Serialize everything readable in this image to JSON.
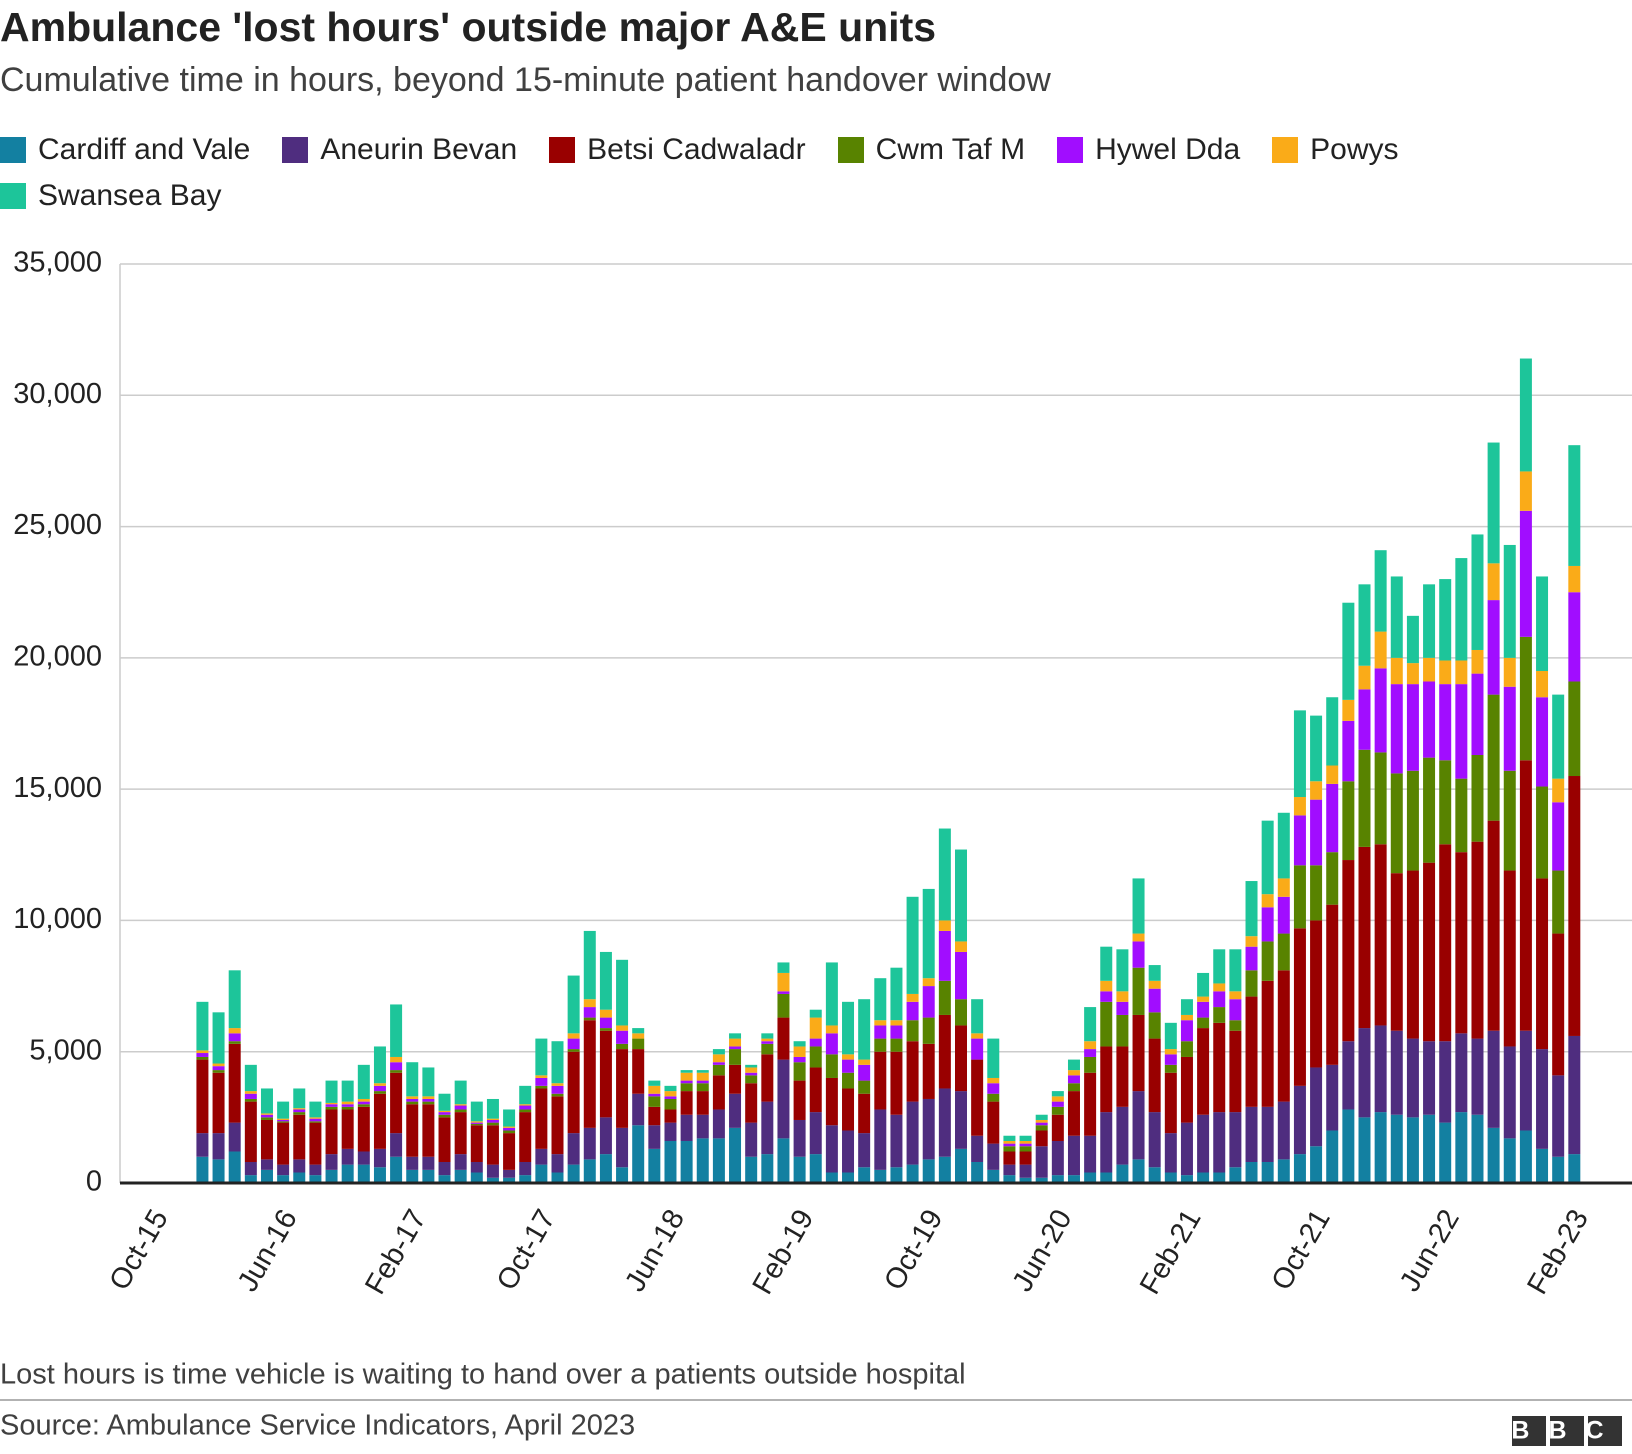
{
  "chart_data": {
    "type": "stacked_bar",
    "title": "Ambulance 'lost hours' outside major A&E units",
    "subtitle": "Cumulative time in hours, beyond 15-minute patient handover window",
    "footnote": "Lost hours is time vehicle is waiting to hand over a patients outside hospital",
    "source": "Source: Ambulance Service Indicators, April 2023",
    "logo": "BBC",
    "categories": [
      "Oct-15",
      null,
      null,
      null,
      null,
      null,
      null,
      null,
      "Jun-16",
      null,
      null,
      null,
      null,
      null,
      null,
      null,
      "Feb-17",
      null,
      null,
      null,
      null,
      null,
      null,
      null,
      "Oct-17",
      null,
      null,
      null,
      null,
      null,
      null,
      null,
      "Jun-18",
      null,
      null,
      null,
      null,
      null,
      null,
      null,
      "Feb-19",
      null,
      null,
      null,
      null,
      null,
      null,
      null,
      "Oct-19",
      null,
      null,
      null,
      null,
      null,
      null,
      null,
      "Jun-20",
      null,
      null,
      null,
      null,
      null,
      null,
      null,
      "Feb-21",
      null,
      null,
      null,
      null,
      null,
      null,
      null,
      "Oct-21",
      null,
      null,
      null,
      null,
      null,
      null,
      null,
      "Jun-22",
      null,
      null,
      null,
      null,
      null,
      null,
      null,
      "Feb-23"
    ],
    "ylim": [
      0,
      35000
    ],
    "yticks": [
      0,
      {
        "value": 5000,
        "label": "5,000"
      },
      {
        "value": 10000,
        "label": "10,000"
      },
      {
        "value": 15000,
        "label": "15,000"
      },
      {
        "value": 20000,
        "label": "20,000"
      },
      {
        "value": 25000,
        "label": "25,000"
      },
      {
        "value": 30000,
        "label": "30,000"
      },
      {
        "value": 35000,
        "label": "35,000"
      }
    ],
    "grid": true,
    "series": [
      {
        "name": "Cardiff and Vale",
        "color": "#1380a1",
        "values": [
          null,
          null,
          null,
          1000,
          900,
          1200,
          300,
          500,
          300,
          400,
          300,
          500,
          700,
          700,
          600,
          1000,
          500,
          500,
          300,
          500,
          400,
          200,
          200,
          300,
          700,
          400,
          700,
          900,
          1100,
          600,
          2200,
          1300,
          1600,
          1600,
          1700,
          1700,
          2100,
          1000,
          1100,
          1700,
          1000,
          1100,
          400,
          400,
          600,
          500,
          600,
          700,
          900,
          1000,
          1300,
          800,
          500,
          300,
          200,
          200,
          300,
          300,
          400,
          400,
          700,
          900,
          600,
          400,
          300,
          400,
          400,
          600,
          800,
          800,
          900,
          1100,
          1400,
          2000,
          2800,
          2500,
          2700,
          2600,
          2500,
          2600,
          2300,
          2700,
          2600,
          2100,
          1700,
          2000,
          1300,
          1000,
          1100
        ]
      },
      {
        "name": "Aneurin Bevan",
        "color": "#4f2d7f",
        "values": [
          null,
          null,
          null,
          900,
          1000,
          1100,
          500,
          400,
          400,
          500,
          400,
          600,
          600,
          500,
          700,
          900,
          500,
          500,
          500,
          600,
          400,
          500,
          300,
          500,
          600,
          700,
          1200,
          1200,
          1400,
          1500,
          1200,
          900,
          700,
          1000,
          900,
          1100,
          1300,
          1300,
          2000,
          3000,
          1400,
          1600,
          1800,
          1600,
          1300,
          2300,
          2000,
          2400,
          2300,
          2600,
          2200,
          1000,
          1000,
          400,
          500,
          1200,
          1300,
          1500,
          1400,
          2300,
          2200,
          2600,
          2100,
          1500,
          2000,
          2200,
          2300,
          2100,
          2100,
          2100,
          2200,
          2600,
          3000,
          2500,
          2600,
          3400,
          3300,
          3200,
          3000,
          2800,
          3100,
          3000,
          2900,
          3700,
          3500,
          3800,
          3800,
          3100,
          4500
        ]
      },
      {
        "name": "Betsi Cadwaladr",
        "color": "#990000",
        "values": [
          null,
          null,
          null,
          2800,
          2300,
          3000,
          2300,
          1500,
          1600,
          1700,
          1600,
          1700,
          1500,
          1700,
          2100,
          2300,
          2000,
          2000,
          1700,
          1600,
          1400,
          1500,
          1400,
          1900,
          2300,
          2200,
          3100,
          4100,
          3300,
          3000,
          1700,
          700,
          500,
          900,
          900,
          1300,
          1100,
          1500,
          1800,
          1600,
          1500,
          1700,
          1800,
          1600,
          1500,
          2200,
          2400,
          2300,
          2100,
          2800,
          2500,
          2900,
          1600,
          500,
          500,
          600,
          1000,
          1700,
          2400,
          2500,
          2300,
          2900,
          2800,
          2300,
          2500,
          3300,
          3400,
          3100,
          4200,
          4800,
          5000,
          6000,
          5600,
          6100,
          6900,
          6900,
          6900,
          6000,
          6400,
          6800,
          7500,
          6900,
          7500,
          8000,
          6700,
          10300,
          6500,
          5400,
          9900
        ]
      },
      {
        "name": "Cwm Taf M",
        "color": "#588300",
        "values": [
          null,
          null,
          null,
          100,
          100,
          100,
          100,
          100,
          50,
          100,
          50,
          100,
          100,
          100,
          100,
          100,
          100,
          100,
          100,
          100,
          50,
          100,
          100,
          100,
          100,
          100,
          100,
          100,
          100,
          200,
          400,
          400,
          400,
          300,
          300,
          400,
          600,
          300,
          400,
          900,
          700,
          800,
          900,
          600,
          500,
          500,
          500,
          800,
          1000,
          1300,
          1000,
          0,
          300,
          200,
          200,
          200,
          300,
          300,
          600,
          1700,
          1200,
          1800,
          1000,
          300,
          600,
          400,
          600,
          400,
          1000,
          1500,
          1400,
          2400,
          2100,
          2000,
          3000,
          3700,
          3500,
          3800,
          3800,
          4000,
          3200,
          2800,
          3300,
          4800,
          3800,
          4700,
          3500,
          2400,
          3600
        ]
      },
      {
        "name": "Hywel Dda",
        "color": "#a10dff",
        "values": [
          null,
          null,
          null,
          150,
          150,
          300,
          200,
          100,
          50,
          100,
          100,
          100,
          100,
          100,
          200,
          300,
          100,
          100,
          100,
          150,
          50,
          100,
          100,
          150,
          300,
          300,
          400,
          400,
          400,
          500,
          0,
          100,
          100,
          100,
          100,
          100,
          100,
          100,
          100,
          100,
          200,
          300,
          800,
          500,
          600,
          500,
          500,
          700,
          1200,
          1900,
          1800,
          800,
          400,
          100,
          100,
          100,
          200,
          300,
          300,
          400,
          500,
          1000,
          900,
          400,
          800,
          600,
          600,
          800,
          900,
          1300,
          1400,
          1900,
          2500,
          2600,
          2300,
          2300,
          3200,
          3400,
          3300,
          2900,
          2900,
          3600,
          3100,
          3600,
          3200,
          4800,
          3400,
          2600,
          3400
        ]
      },
      {
        "name": "Powys",
        "color": "#faab18",
        "values": [
          null,
          null,
          null,
          100,
          100,
          200,
          100,
          50,
          50,
          50,
          50,
          50,
          100,
          100,
          100,
          200,
          100,
          100,
          50,
          50,
          50,
          50,
          50,
          50,
          100,
          100,
          200,
          300,
          300,
          200,
          200,
          300,
          200,
          300,
          300,
          300,
          300,
          200,
          100,
          700,
          400,
          800,
          300,
          200,
          200,
          200,
          200,
          300,
          300,
          400,
          400,
          200,
          200,
          100,
          100,
          100,
          200,
          200,
          300,
          400,
          400,
          300,
          300,
          200,
          200,
          200,
          300,
          300,
          400,
          500,
          700,
          700,
          700,
          700,
          800,
          900,
          1400,
          1000,
          800,
          900,
          900,
          900,
          900,
          1400,
          1100,
          1500,
          1000,
          900,
          1000
        ]
      },
      {
        "name": "Swansea Bay",
        "color": "#1dc59a",
        "values": [
          null,
          null,
          null,
          1850,
          1950,
          2200,
          1000,
          950,
          650,
          750,
          600,
          850,
          800,
          1300,
          1400,
          2000,
          1300,
          1100,
          650,
          900,
          750,
          750,
          650,
          700,
          1400,
          1600,
          2200,
          2600,
          2200,
          2500,
          200,
          200,
          200,
          100,
          100,
          200,
          200,
          100,
          200,
          400,
          200,
          300,
          2400,
          2000,
          2300,
          1600,
          2000,
          3700,
          3400,
          3500,
          3500,
          1300,
          1500,
          200,
          200,
          200,
          200,
          400,
          1300,
          1300,
          1600,
          2100,
          600,
          1000,
          600,
          900,
          1300,
          1600,
          2100,
          2800,
          2500,
          3300,
          2500,
          2600,
          3700,
          3100,
          3100,
          3100,
          1800,
          2800,
          3100,
          3900,
          4400,
          4600,
          4300,
          4300,
          3600,
          3200,
          4600
        ]
      }
    ]
  }
}
